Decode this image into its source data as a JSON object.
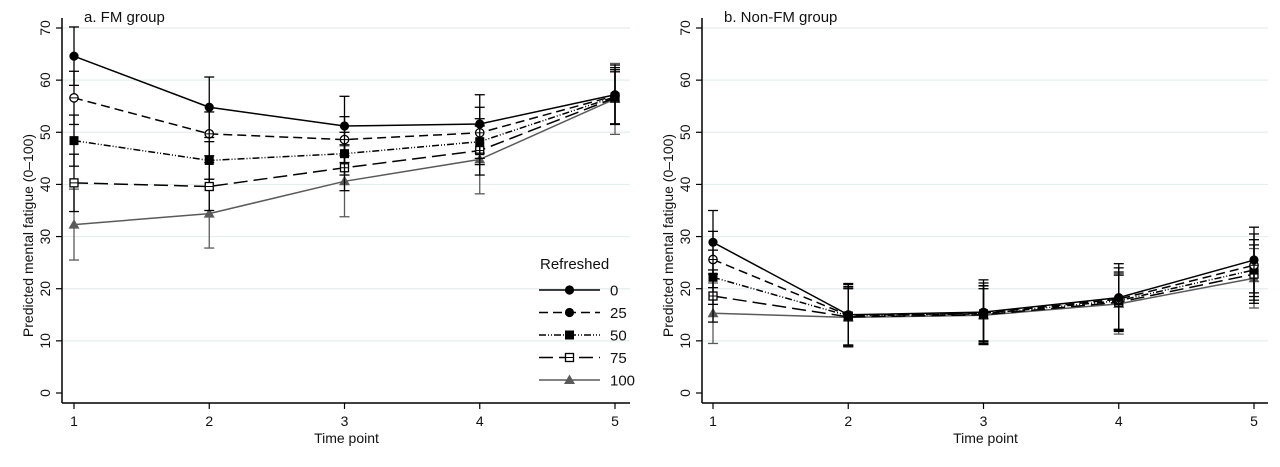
{
  "chart_data": [
    {
      "type": "line",
      "title": "a. FM group",
      "xlabel": "Time point",
      "ylabel": "Predicted mental fatigue (0–100)",
      "x": [
        1,
        2,
        3,
        4,
        5
      ],
      "xticks": [
        "1",
        "2",
        "3",
        "4",
        "5"
      ],
      "yticks": [
        "0",
        "10",
        "20",
        "30",
        "40",
        "50",
        "60",
        "70"
      ],
      "ylim": [
        0,
        70
      ],
      "grid": true,
      "legend": {
        "title": "Refreshed",
        "placement": "bottom-right",
        "show": true
      },
      "series": [
        {
          "name": "0",
          "values": [
            64.6,
            54.8,
            51.2,
            51.6,
            57.2
          ],
          "ci_low": [
            59.0,
            49.0,
            45.5,
            46.0,
            51.5
          ],
          "ci_high": [
            70.2,
            60.6,
            56.9,
            57.2,
            62.9
          ]
        },
        {
          "name": "25",
          "values": [
            56.6,
            49.7,
            48.6,
            49.9,
            57.0
          ],
          "ci_low": [
            51.5,
            45.5,
            44.2,
            45.0,
            51.6
          ],
          "ci_high": [
            61.7,
            53.9,
            53.0,
            54.8,
            62.4
          ]
        },
        {
          "name": "50",
          "values": [
            48.4,
            44.6,
            45.9,
            48.2,
            56.8
          ],
          "ci_low": [
            43.5,
            41.0,
            41.8,
            43.8,
            51.6
          ],
          "ci_high": [
            53.3,
            48.2,
            50.0,
            52.6,
            62.0
          ]
        },
        {
          "name": "75",
          "values": [
            40.3,
            39.6,
            43.2,
            46.5,
            56.6
          ],
          "ci_low": [
            34.8,
            35.0,
            38.8,
            41.8,
            51.6
          ],
          "ci_high": [
            45.8,
            44.2,
            47.6,
            51.2,
            61.6
          ]
        },
        {
          "name": "100",
          "values": [
            32.3,
            34.4,
            40.6,
            44.8,
            56.4
          ],
          "ci_low": [
            25.5,
            27.8,
            33.8,
            38.2,
            49.6
          ],
          "ci_high": [
            39.1,
            41.0,
            47.4,
            51.4,
            63.2
          ]
        }
      ]
    },
    {
      "type": "line",
      "title": "b. Non-FM group",
      "xlabel": "Time point",
      "ylabel": "Predicted mental fatigue (0–100)",
      "x": [
        1,
        2,
        3,
        4,
        5
      ],
      "xticks": [
        "1",
        "2",
        "3",
        "4",
        "5"
      ],
      "yticks": [
        "0",
        "10",
        "20",
        "30",
        "40",
        "50",
        "60",
        "70"
      ],
      "ylim": [
        0,
        70
      ],
      "grid": true,
      "legend": {
        "show": false
      },
      "series": [
        {
          "name": "0",
          "values": [
            28.9,
            15.0,
            15.5,
            18.3,
            25.5
          ],
          "ci_low": [
            22.8,
            9.0,
            9.3,
            11.8,
            19.2
          ],
          "ci_high": [
            35.0,
            21.0,
            21.7,
            24.8,
            31.8
          ]
        },
        {
          "name": "25",
          "values": [
            25.6,
            14.9,
            15.3,
            18.0,
            24.5
          ],
          "ci_low": [
            20.2,
            9.0,
            9.5,
            12.0,
            18.5
          ],
          "ci_high": [
            31.0,
            20.8,
            21.1,
            24.0,
            30.5
          ]
        },
        {
          "name": "50",
          "values": [
            22.2,
            14.8,
            15.2,
            17.7,
            23.6
          ],
          "ci_low": [
            17.0,
            9.2,
            9.8,
            12.2,
            17.8
          ],
          "ci_high": [
            27.4,
            20.4,
            20.6,
            23.2,
            29.4
          ]
        },
        {
          "name": "75",
          "values": [
            18.6,
            14.6,
            15.0,
            17.4,
            22.8
          ],
          "ci_low": [
            13.6,
            9.2,
            10.0,
            12.2,
            17.2
          ],
          "ci_high": [
            23.6,
            20.0,
            20.0,
            22.6,
            28.4
          ]
        },
        {
          "name": "100",
          "values": [
            15.3,
            14.5,
            14.9,
            17.1,
            22.0
          ],
          "ci_low": [
            9.5,
            8.8,
            9.3,
            11.3,
            16.3
          ],
          "ci_high": [
            21.1,
            20.2,
            20.5,
            22.9,
            27.7
          ]
        }
      ]
    }
  ],
  "styles": {
    "series_colors": [
      "#000000",
      "#000000",
      "#000000",
      "#000000",
      "#5a5a5a"
    ],
    "grid_color": "#e3eeee",
    "axis_color": "#000000"
  }
}
